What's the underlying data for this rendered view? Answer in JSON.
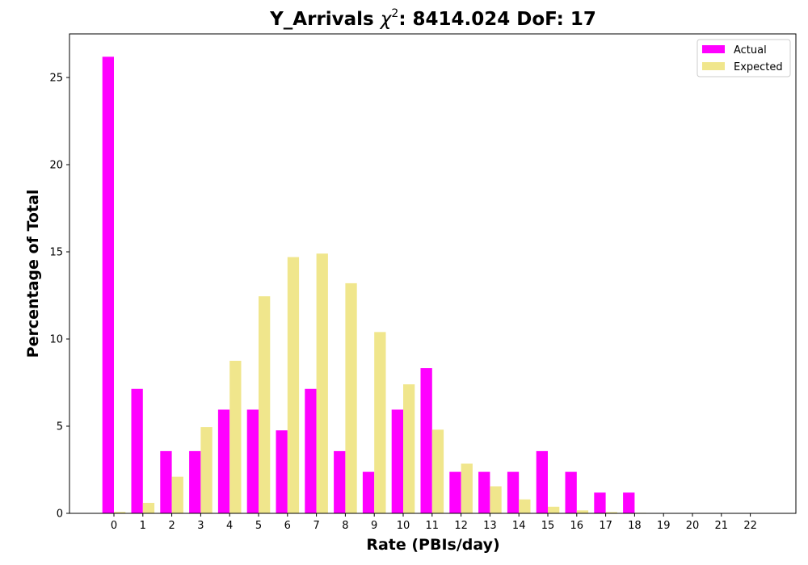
{
  "chart_data": {
    "type": "bar",
    "title_main": "Y_Arrivals ",
    "title_chi": "χ",
    "title_sup": "2",
    "title_rest": ": 8414.024 DoF: 17",
    "xlabel": "Rate (PBIs/day)",
    "ylabel": "Percentage of Total",
    "ylim": [
      0,
      27.5
    ],
    "yticks": [
      "0",
      "5",
      "10",
      "15",
      "20",
      "25"
    ],
    "categories": [
      "0",
      "1",
      "2",
      "3",
      "4",
      "5",
      "6",
      "7",
      "8",
      "9",
      "10",
      "11",
      "12",
      "13",
      "14",
      "15",
      "16",
      "17",
      "18",
      "19",
      "20",
      "21",
      "22"
    ],
    "legend_position": "top-right",
    "series": [
      {
        "name": "Actual",
        "color": "#ff00ff",
        "values": [
          26.19,
          7.14,
          3.57,
          3.57,
          5.95,
          5.95,
          4.76,
          7.14,
          3.57,
          2.38,
          5.95,
          8.33,
          2.38,
          2.38,
          2.38,
          3.57,
          2.38,
          1.19,
          1.19,
          0,
          0,
          0,
          0
        ]
      },
      {
        "name": "Expected",
        "color": "#f0e68c",
        "values": [
          0.08,
          0.6,
          2.1,
          4.95,
          8.75,
          12.45,
          14.7,
          14.9,
          13.2,
          10.4,
          7.4,
          4.8,
          2.85,
          1.55,
          0.8,
          0.38,
          0.17,
          0.07,
          0.03,
          0.01,
          0,
          0,
          0
        ]
      }
    ]
  }
}
